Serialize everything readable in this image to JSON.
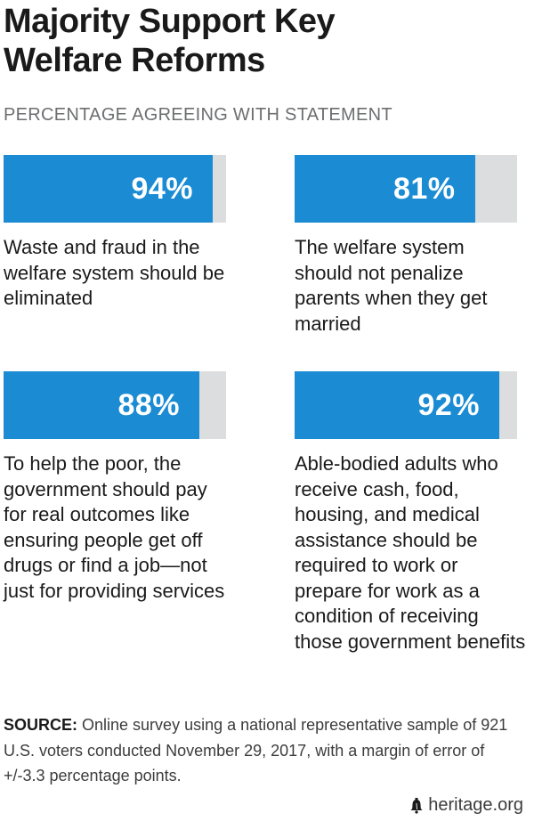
{
  "title": "Majority Support Key\nWelfare Reforms",
  "subtitle": "PERCENTAGE AGREEING WITH STATEMENT",
  "chart_data": {
    "type": "bar",
    "title": "Majority Support Key Welfare Reforms",
    "subtitle": "PERCENTAGE AGREEING WITH STATEMENT",
    "unit": "%",
    "ylim": [
      0,
      100
    ],
    "categories": [
      "Waste and fraud in the welfare system should be eliminated",
      "The welfare system should not penalize parents when they get married",
      "To help the poor, the government should pay for real outcomes like ensuring people get off drugs or find a job—not just for providing services",
      "Able-bodied adults who receive cash, food, housing, and medical assistance should be required to work or prepare for work as a condition of receiving those government benefits"
    ],
    "values": [
      94,
      81,
      88,
      92
    ],
    "value_labels": [
      "94%",
      "81%",
      "88%",
      "92%"
    ],
    "colors": {
      "fill": "#1b8cd3",
      "track": "#dcdddf",
      "label": "#ffffff"
    }
  },
  "source": {
    "label": "SOURCE:",
    "text": " Online survey using a national representative sample of 921 U.S. voters conducted November 29, 2017, with a margin of error of +/-3.3 percentage points."
  },
  "credit": {
    "icon": "liberty-bell-icon",
    "text": "heritage.org"
  }
}
